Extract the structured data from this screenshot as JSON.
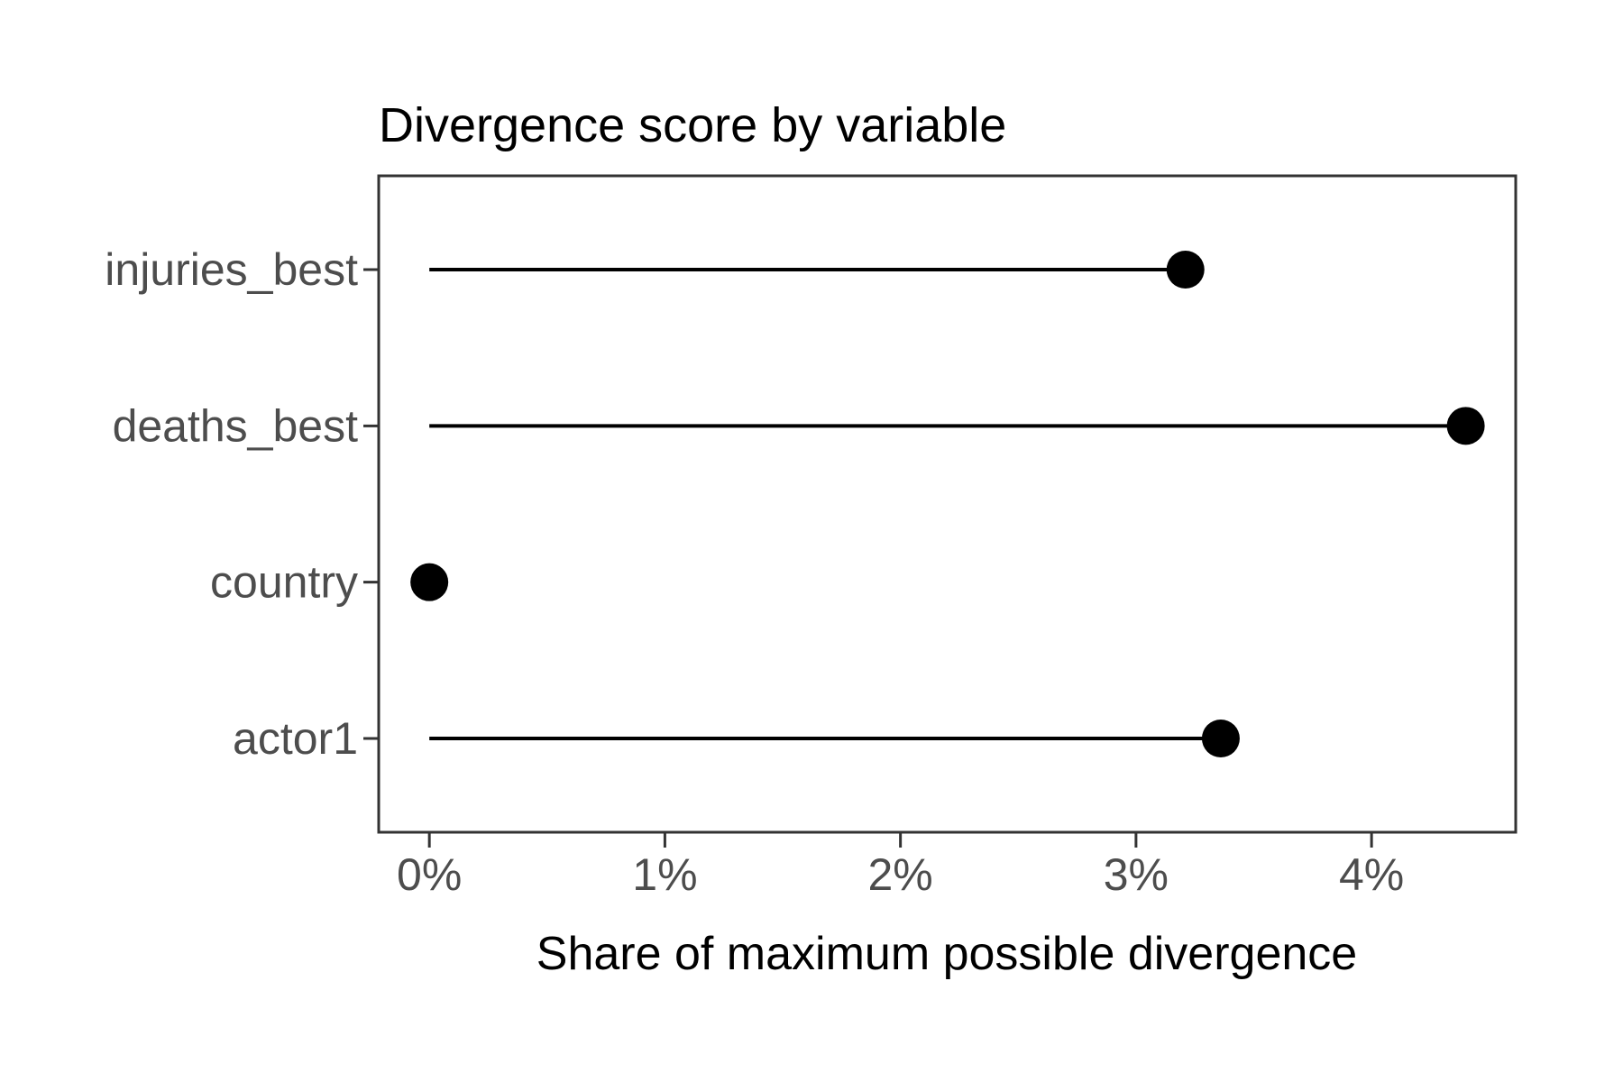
{
  "chart_data": {
    "type": "lollipop",
    "orientation": "horizontal",
    "title": "Divergence score by variable",
    "xlabel": "Share of maximum possible divergence",
    "ylabel": "",
    "categories": [
      "injuries_best",
      "deaths_best",
      "country",
      "actor1"
    ],
    "values_percent": [
      3.21,
      4.4,
      0.0,
      3.36
    ],
    "x_ticks": [
      {
        "value": 0,
        "label": "0%"
      },
      {
        "value": 1,
        "label": "1%"
      },
      {
        "value": 2,
        "label": "2%"
      },
      {
        "value": 3,
        "label": "3%"
      },
      {
        "value": 4,
        "label": "4%"
      }
    ],
    "xlim_percent": [
      -0.215,
      4.612
    ],
    "grid": "off",
    "legend": "none",
    "colors": {
      "point": "#000000",
      "stem": "#000000",
      "title": "#000000",
      "axis_title": "#000000",
      "axis_text": "#4d4d4d",
      "tick_mark": "#333333",
      "panel_border": "#333333",
      "background": "#ffffff"
    }
  }
}
